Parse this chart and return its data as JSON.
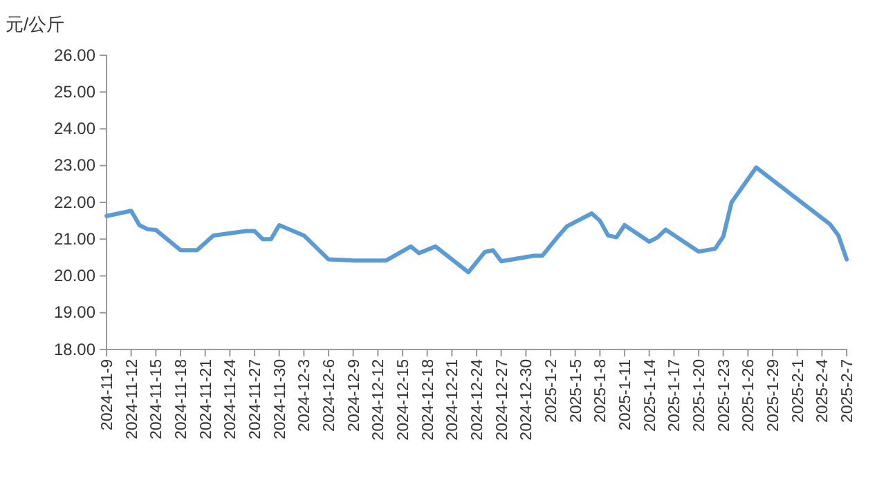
{
  "chart_data": {
    "type": "line",
    "ylabel": "元/公斤",
    "x": [
      "2024-11-09",
      "2024-11-12",
      "2024-11-13",
      "2024-11-14",
      "2024-11-15",
      "2024-11-18",
      "2024-11-20",
      "2024-11-22",
      "2024-11-26",
      "2024-11-27",
      "2024-11-28",
      "2024-11-29",
      "2024-11-30",
      "2024-12-03",
      "2024-12-06",
      "2024-12-09",
      "2024-12-13",
      "2024-12-16",
      "2024-12-17",
      "2024-12-19",
      "2024-12-23",
      "2024-12-25",
      "2024-12-26",
      "2024-12-27",
      "2024-12-31",
      "2025-01-01",
      "2025-01-03",
      "2025-01-04",
      "2025-01-07",
      "2025-01-08",
      "2025-01-09",
      "2025-01-10",
      "2025-01-11",
      "2025-01-14",
      "2025-01-15",
      "2025-01-16",
      "2025-01-20",
      "2025-01-22",
      "2025-01-23",
      "2025-01-24",
      "2025-01-27",
      "2025-02-05",
      "2025-02-06",
      "2025-02-07"
    ],
    "series": [
      {
        "color": "#5b9bd5",
        "values": [
          21.63,
          21.77,
          21.38,
          21.27,
          21.25,
          20.7,
          20.7,
          21.1,
          21.22,
          21.22,
          21.0,
          21.0,
          21.38,
          21.1,
          20.45,
          20.42,
          20.42,
          20.8,
          20.62,
          20.8,
          20.1,
          20.65,
          20.7,
          20.4,
          20.55,
          20.55,
          21.1,
          21.35,
          21.7,
          21.5,
          21.1,
          21.05,
          21.38,
          20.93,
          21.05,
          21.26,
          20.66,
          20.74,
          21.07,
          22.0,
          22.95,
          21.4,
          21.1,
          20.45
        ]
      }
    ],
    "xlim": [
      "2024-11-09",
      "2025-02-07"
    ],
    "xticks": [
      {
        "value": "2024-11-09",
        "label": "2024-11-9"
      },
      {
        "value": "2024-11-12",
        "label": "2024-11-12"
      },
      {
        "value": "2024-11-15",
        "label": "2024-11-15"
      },
      {
        "value": "2024-11-18",
        "label": "2024-11-18"
      },
      {
        "value": "2024-11-21",
        "label": "2024-11-21"
      },
      {
        "value": "2024-11-24",
        "label": "2024-11-24"
      },
      {
        "value": "2024-11-27",
        "label": "2024-11-27"
      },
      {
        "value": "2024-11-30",
        "label": "2024-11-30"
      },
      {
        "value": "2024-12-03",
        "label": "2024-12-3"
      },
      {
        "value": "2024-12-06",
        "label": "2024-12-6"
      },
      {
        "value": "2024-12-09",
        "label": "2024-12-9"
      },
      {
        "value": "2024-12-12",
        "label": "2024-12-12"
      },
      {
        "value": "2024-12-15",
        "label": "2024-12-15"
      },
      {
        "value": "2024-12-18",
        "label": "2024-12-18"
      },
      {
        "value": "2024-12-21",
        "label": "2024-12-21"
      },
      {
        "value": "2024-12-24",
        "label": "2024-12-24"
      },
      {
        "value": "2024-12-27",
        "label": "2024-12-27"
      },
      {
        "value": "2024-12-30",
        "label": "2024-12-30"
      },
      {
        "value": "2025-01-02",
        "label": "2025-1-2"
      },
      {
        "value": "2025-01-05",
        "label": "2025-1-5"
      },
      {
        "value": "2025-01-08",
        "label": "2025-1-8"
      },
      {
        "value": "2025-01-11",
        "label": "2025-1-11"
      },
      {
        "value": "2025-01-14",
        "label": "2025-1-14"
      },
      {
        "value": "2025-01-17",
        "label": "2025-1-17"
      },
      {
        "value": "2025-01-20",
        "label": "2025-1-20"
      },
      {
        "value": "2025-01-23",
        "label": "2025-1-23"
      },
      {
        "value": "2025-01-26",
        "label": "2025-1-26"
      },
      {
        "value": "2025-01-29",
        "label": "2025-1-29"
      },
      {
        "value": "2025-02-01",
        "label": "2025-2-1"
      },
      {
        "value": "2025-02-04",
        "label": "2025-2-4"
      },
      {
        "value": "2025-02-07",
        "label": "2025-2-7"
      }
    ],
    "ylim": [
      18,
      26
    ],
    "yticks": [
      {
        "value": 18,
        "label": "18.00"
      },
      {
        "value": 19,
        "label": "19.00"
      },
      {
        "value": 20,
        "label": "20.00"
      },
      {
        "value": 21,
        "label": "21.00"
      },
      {
        "value": 22,
        "label": "22.00"
      },
      {
        "value": 23,
        "label": "23.00"
      },
      {
        "value": 24,
        "label": "24.00"
      },
      {
        "value": 25,
        "label": "25.00"
      },
      {
        "value": 26,
        "label": "26.00"
      }
    ],
    "grid": false,
    "legend": false,
    "marker": "none",
    "line_style": "solid"
  }
}
